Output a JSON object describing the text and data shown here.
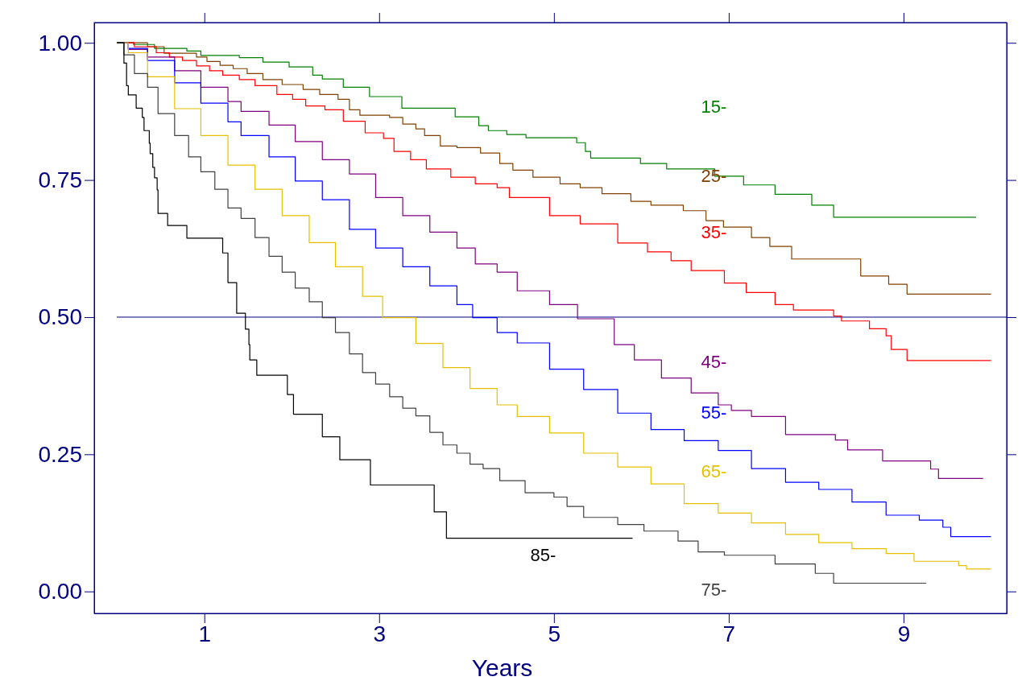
{
  "chart_data": {
    "type": "step",
    "xlabel": "Years",
    "xlim": [
      -0.26,
      10.18
    ],
    "ylim": [
      -0.04,
      1.037
    ],
    "xticks": [
      1,
      3,
      5,
      7,
      9
    ],
    "yticks": [
      {
        "value": 0,
        "label": "0.00"
      },
      {
        "value": 0.25,
        "label": "0.25"
      },
      {
        "value": 0.5,
        "label": "0.50"
      },
      {
        "value": 0.75,
        "label": "0.75"
      },
      {
        "value": 1,
        "label": "1.00"
      }
    ],
    "grid": false,
    "legend": false,
    "line_style": "solid",
    "marker": "none",
    "ref_lines": [
      {
        "axis": "y",
        "value": 0.5,
        "color": "#000080"
      }
    ],
    "series": [
      {
        "name": "15-",
        "color": "#008000",
        "x": [
          0,
          0.19,
          0.43,
          0.8,
          0.96,
          1.4,
          1.67,
          1.97,
          2.24,
          2.35,
          2.59,
          2.89,
          3.26,
          3.87,
          4.14,
          4.25,
          4.46,
          4.68,
          5.26,
          5.36,
          5.42,
          5.99,
          6.29,
          6.84,
          7.17,
          7.53,
          7.95,
          8.2,
          9.83
        ],
        "values": [
          1,
          0.997,
          0.99,
          0.985,
          0.977,
          0.973,
          0.965,
          0.956,
          0.941,
          0.934,
          0.919,
          0.902,
          0.881,
          0.865,
          0.849,
          0.84,
          0.833,
          0.827,
          0.818,
          0.802,
          0.79,
          0.78,
          0.77,
          0.757,
          0.741,
          0.724,
          0.704,
          0.682,
          0.682
        ]
      },
      {
        "name": "25-",
        "color": "#804000",
        "x": [
          0,
          0.35,
          0.54,
          0.91,
          1.03,
          1.18,
          1.33,
          1.49,
          1.67,
          1.89,
          2.13,
          2.32,
          2.53,
          2.66,
          2.78,
          3.12,
          3.27,
          3.42,
          3.52,
          3.7,
          3.89,
          4.16,
          4.38,
          4.53,
          4.76,
          5.07,
          5.3,
          5.55,
          5.88,
          6.11,
          6.48,
          6.74,
          6.94,
          7.26,
          7.47,
          7.72,
          8.51,
          8.83,
          9.04,
          10.0
        ],
        "values": [
          1,
          0.993,
          0.981,
          0.974,
          0.966,
          0.959,
          0.953,
          0.944,
          0.933,
          0.924,
          0.915,
          0.906,
          0.897,
          0.878,
          0.868,
          0.864,
          0.852,
          0.843,
          0.831,
          0.812,
          0.809,
          0.799,
          0.78,
          0.768,
          0.755,
          0.743,
          0.736,
          0.725,
          0.711,
          0.704,
          0.694,
          0.676,
          0.664,
          0.645,
          0.629,
          0.606,
          0.575,
          0.56,
          0.542,
          0.542
        ]
      },
      {
        "name": "35-",
        "color": "#ff0000",
        "x": [
          0,
          0.2,
          0.45,
          0.6,
          0.75,
          0.91,
          1.06,
          1.21,
          1.4,
          1.58,
          1.83,
          2.01,
          2.16,
          2.38,
          2.59,
          2.84,
          3.05,
          3.17,
          3.36,
          3.54,
          3.82,
          4.1,
          4.35,
          4.49,
          4.95,
          5.3,
          5.73,
          6.07,
          6.34,
          6.57,
          6.95,
          7.2,
          7.53,
          7.74,
          8.2,
          8.29,
          8.61,
          8.8,
          8.86,
          9.04,
          10.0
        ],
        "values": [
          1,
          0.993,
          0.982,
          0.974,
          0.968,
          0.958,
          0.949,
          0.941,
          0.933,
          0.922,
          0.906,
          0.897,
          0.885,
          0.878,
          0.857,
          0.836,
          0.826,
          0.802,
          0.787,
          0.77,
          0.755,
          0.743,
          0.736,
          0.718,
          0.685,
          0.67,
          0.635,
          0.619,
          0.603,
          0.585,
          0.562,
          0.545,
          0.523,
          0.513,
          0.502,
          0.493,
          0.479,
          0.466,
          0.441,
          0.421,
          0.421
        ]
      },
      {
        "name": "45-",
        "color": "#800080",
        "x": [
          0,
          0.13,
          0.35,
          0.66,
          0.96,
          1.27,
          1.42,
          1.74,
          2.04,
          2.35,
          2.66,
          2.96,
          3.27,
          3.58,
          3.89,
          4.1,
          4.35,
          4.58,
          4.95,
          5.27,
          5.69,
          5.92,
          6.23,
          6.57,
          6.88,
          7.03,
          7.26,
          7.65,
          8.22,
          8.36,
          8.76,
          9.31,
          9.4,
          9.91
        ],
        "values": [
          1,
          0.988,
          0.974,
          0.949,
          0.919,
          0.893,
          0.875,
          0.85,
          0.82,
          0.787,
          0.761,
          0.718,
          0.685,
          0.655,
          0.626,
          0.597,
          0.582,
          0.548,
          0.523,
          0.497,
          0.45,
          0.422,
          0.389,
          0.362,
          0.34,
          0.33,
          0.319,
          0.286,
          0.276,
          0.258,
          0.238,
          0.223,
          0.206,
          0.206
        ]
      },
      {
        "name": "55-",
        "color": "#0000ff",
        "x": [
          0,
          0.13,
          0.35,
          0.66,
          0.96,
          1.27,
          1.42,
          1.74,
          2.04,
          2.35,
          2.66,
          2.96,
          3.27,
          3.58,
          3.89,
          4.07,
          4.35,
          4.58,
          4.95,
          5.34,
          5.73,
          6.11,
          6.49,
          6.88,
          7.26,
          7.65,
          8.03,
          8.41,
          8.8,
          9.18,
          9.45,
          9.54,
          10.0
        ],
        "values": [
          1,
          0.99,
          0.968,
          0.927,
          0.89,
          0.856,
          0.831,
          0.792,
          0.748,
          0.714,
          0.66,
          0.626,
          0.592,
          0.557,
          0.523,
          0.499,
          0.472,
          0.453,
          0.405,
          0.368,
          0.325,
          0.295,
          0.275,
          0.257,
          0.224,
          0.199,
          0.186,
          0.163,
          0.139,
          0.13,
          0.117,
          0.1,
          0.1
        ]
      },
      {
        "name": "65-",
        "color": "#e6c000",
        "x": [
          0,
          0.13,
          0.35,
          0.66,
          0.96,
          1.27,
          1.58,
          1.89,
          2.2,
          2.5,
          2.81,
          3.04,
          3.42,
          3.73,
          4.04,
          4.35,
          4.58,
          4.95,
          5.34,
          5.73,
          6.11,
          6.49,
          6.88,
          7.26,
          7.65,
          8.03,
          8.41,
          8.8,
          9.12,
          9.63,
          9.72,
          10.0
        ],
        "values": [
          1,
          0.982,
          0.938,
          0.88,
          0.831,
          0.777,
          0.733,
          0.685,
          0.636,
          0.592,
          0.538,
          0.499,
          0.452,
          0.408,
          0.37,
          0.34,
          0.319,
          0.289,
          0.252,
          0.227,
          0.196,
          0.16,
          0.143,
          0.125,
          0.104,
          0.089,
          0.078,
          0.069,
          0.055,
          0.047,
          0.041,
          0.041
        ]
      },
      {
        "name": "75-",
        "color": "#404040",
        "x": [
          0,
          0.08,
          0.2,
          0.35,
          0.47,
          0.66,
          0.82,
          0.96,
          1.12,
          1.27,
          1.42,
          1.58,
          1.74,
          1.89,
          2.04,
          2.2,
          2.35,
          2.5,
          2.66,
          2.81,
          2.96,
          3.12,
          3.27,
          3.42,
          3.58,
          3.73,
          3.89,
          4.04,
          4.19,
          4.38,
          4.67,
          5.0,
          5.15,
          5.34,
          5.73,
          6.03,
          6.42,
          6.65,
          6.95,
          7.53,
          7.99,
          8.2,
          9.26
        ],
        "values": [
          1,
          0.978,
          0.944,
          0.919,
          0.871,
          0.831,
          0.792,
          0.765,
          0.733,
          0.699,
          0.68,
          0.645,
          0.611,
          0.582,
          0.553,
          0.528,
          0.499,
          0.472,
          0.433,
          0.399,
          0.378,
          0.355,
          0.334,
          0.32,
          0.29,
          0.267,
          0.252,
          0.232,
          0.224,
          0.202,
          0.18,
          0.172,
          0.155,
          0.135,
          0.122,
          0.11,
          0.092,
          0.072,
          0.066,
          0.05,
          0.033,
          0.015,
          0.015
        ]
      },
      {
        "name": "85-",
        "color": "#000000",
        "x": [
          0,
          0.08,
          0.11,
          0.13,
          0.22,
          0.29,
          0.31,
          0.37,
          0.38,
          0.41,
          0.43,
          0.46,
          0.47,
          0.58,
          0.8,
          1.21,
          1.27,
          1.37,
          1.47,
          1.51,
          1.52,
          1.6,
          1.95,
          2.02,
          2.35,
          2.55,
          2.9,
          3.63,
          3.77,
          5.9
        ],
        "values": [
          1,
          0.963,
          0.922,
          0.905,
          0.881,
          0.864,
          0.84,
          0.817,
          0.798,
          0.773,
          0.754,
          0.732,
          0.689,
          0.667,
          0.644,
          0.617,
          0.563,
          0.507,
          0.478,
          0.45,
          0.422,
          0.394,
          0.359,
          0.323,
          0.282,
          0.24,
          0.194,
          0.145,
          0.097,
          0.097
        ]
      }
    ]
  }
}
